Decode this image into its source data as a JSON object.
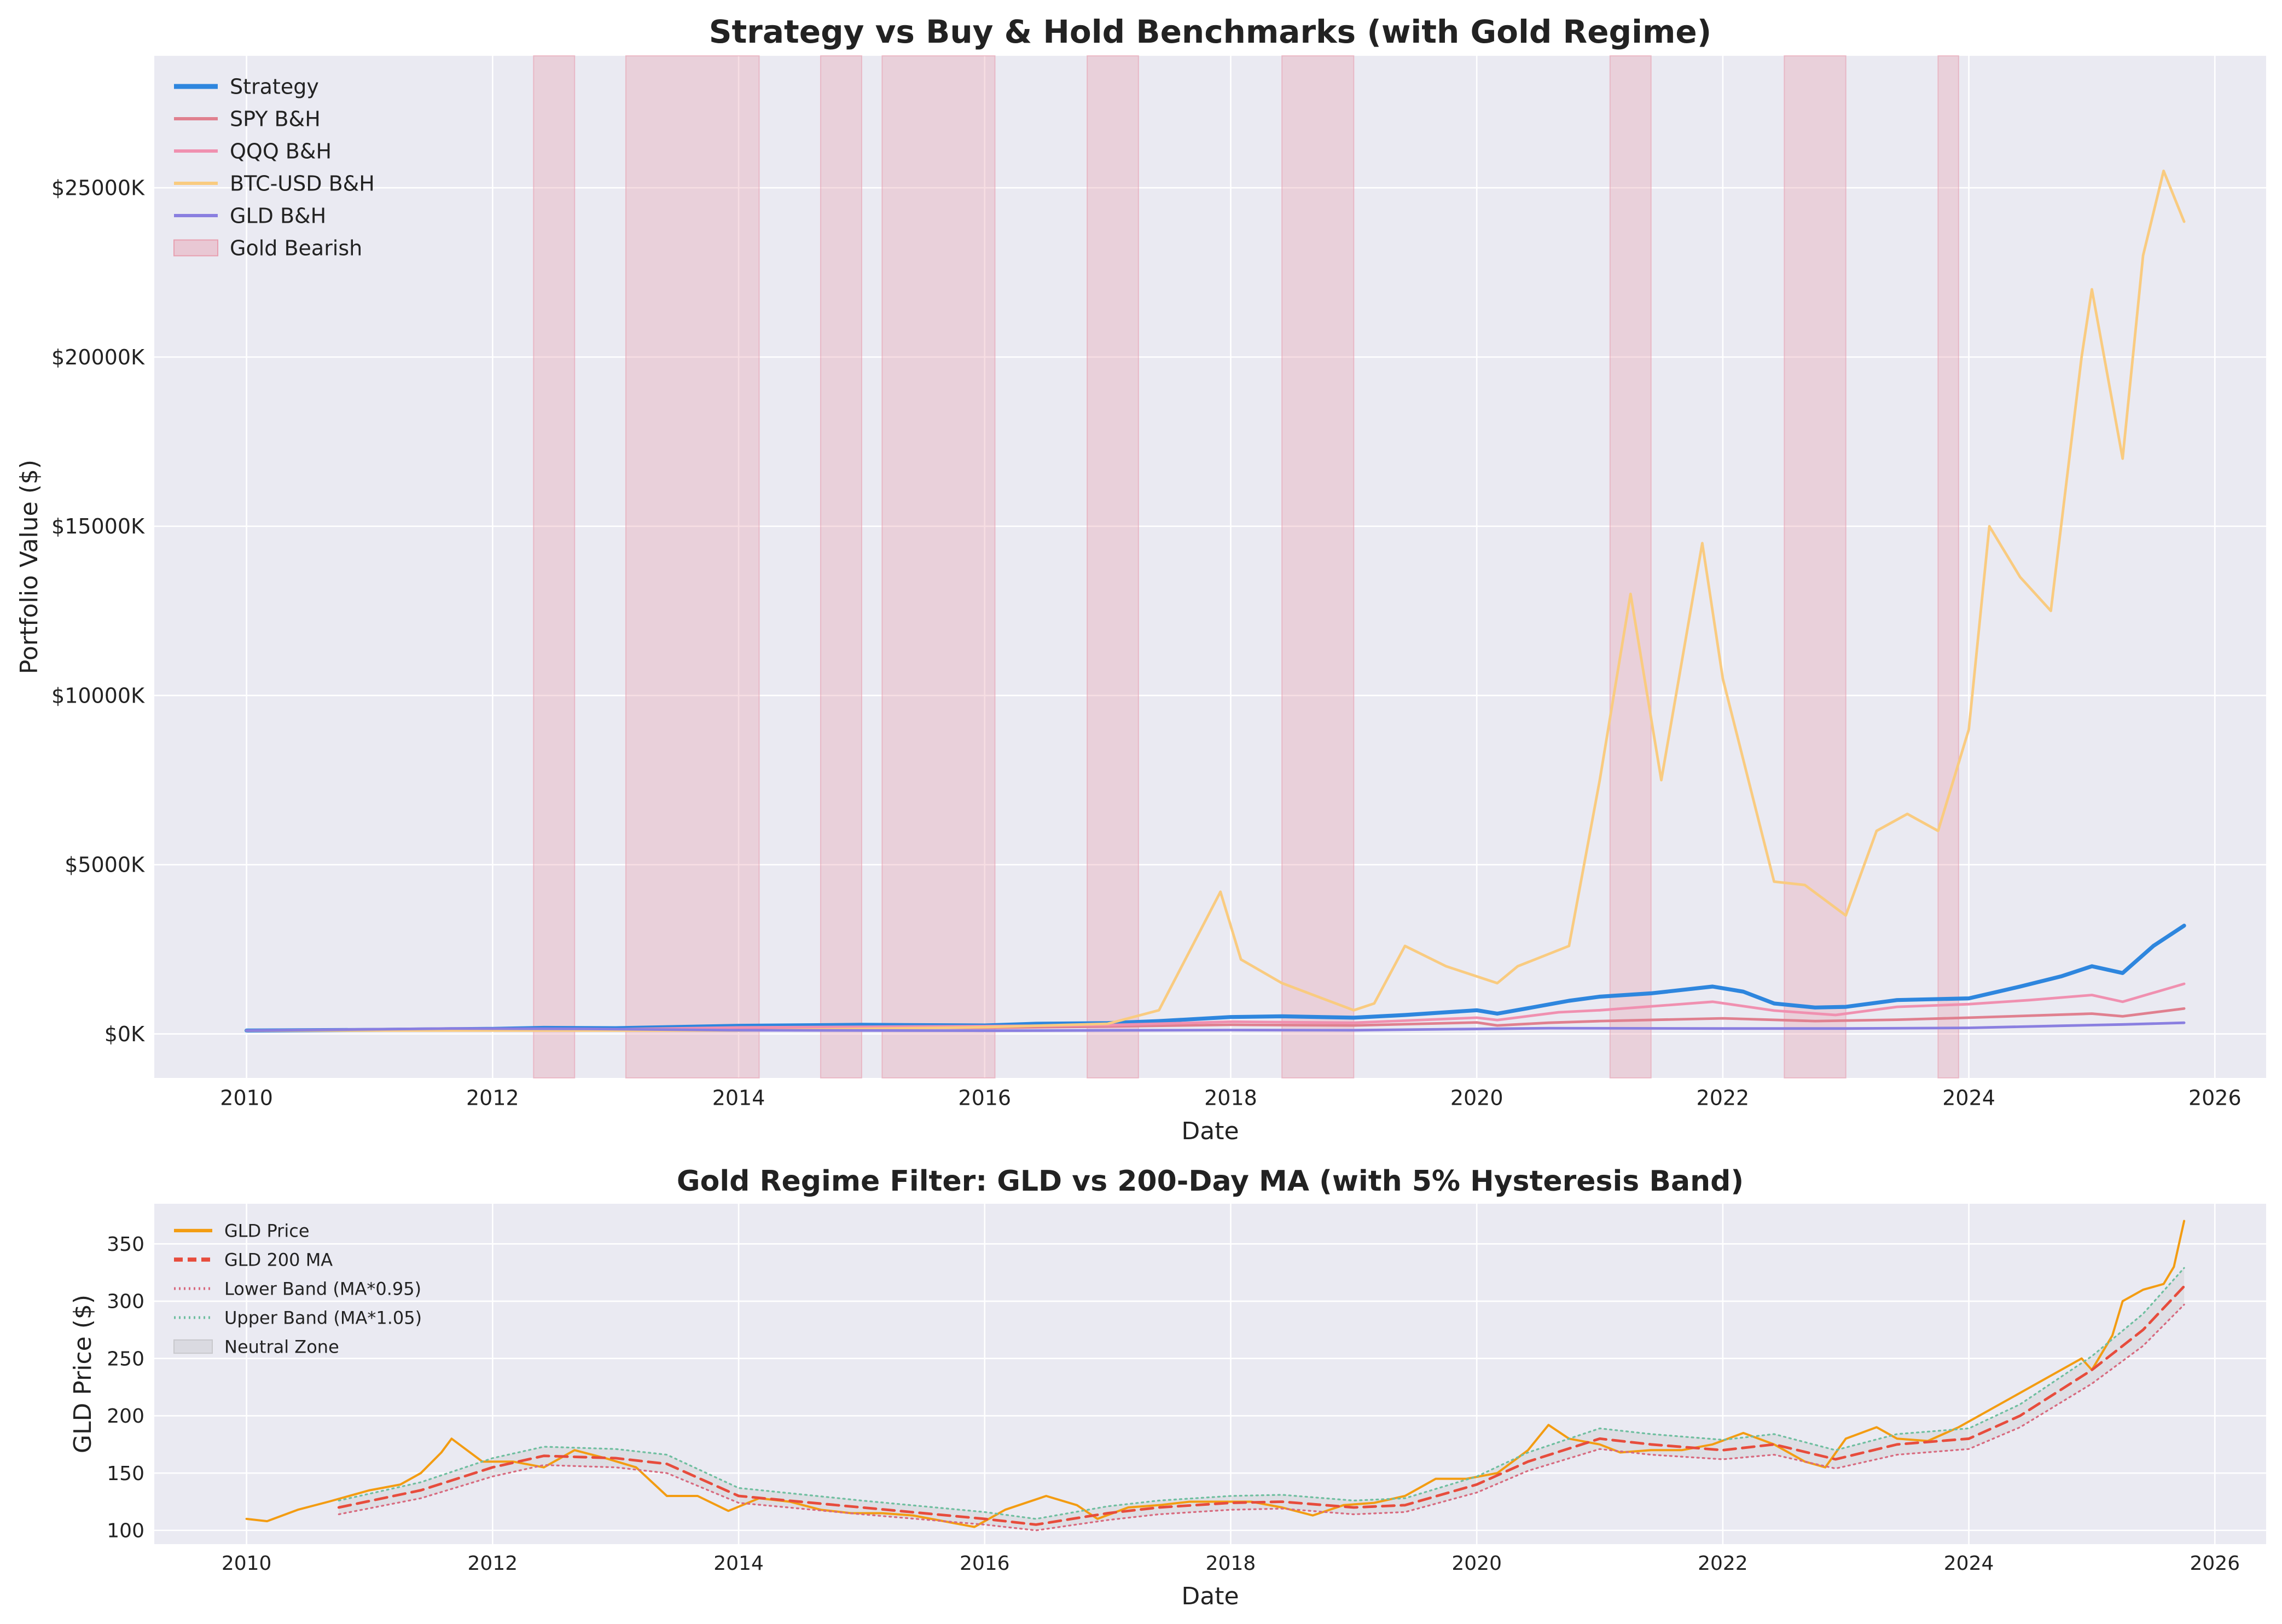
{
  "chart_data": [
    {
      "type": "line",
      "title": "Strategy vs Buy & Hold Benchmarks (with Gold Regime)",
      "xlabel": "Date",
      "ylabel": "Portfolio Value ($)",
      "xlim": [
        "2009-04-01",
        "2026-06-01"
      ],
      "ylim": [
        -1300,
        28900
      ],
      "x_ticks": [
        "2010",
        "2012",
        "2014",
        "2016",
        "2018",
        "2020",
        "2022",
        "2024",
        "2026"
      ],
      "y_ticks": [
        {
          "value": 0,
          "label": "$0K"
        },
        {
          "value": 5000,
          "label": "$5000K"
        },
        {
          "value": 10000,
          "label": "$10000K"
        },
        {
          "value": 15000,
          "label": "$15000K"
        },
        {
          "value": 20000,
          "label": "$20000K"
        },
        {
          "value": 25000,
          "label": "$25000K"
        }
      ],
      "y_unit": "thousands of dollars",
      "grid": true,
      "legend_position": "top-left",
      "shaded_regions": {
        "name": "Gold Bearish",
        "color": "#e8a0b0",
        "spans": [
          [
            "2012-05",
            "2012-09"
          ],
          [
            "2013-02",
            "2014-03"
          ],
          [
            "2014-09",
            "2015-01"
          ],
          [
            "2015-03",
            "2016-02"
          ],
          [
            "2016-11",
            "2017-04"
          ],
          [
            "2018-06",
            "2019-01"
          ],
          [
            "2021-02",
            "2021-06"
          ],
          [
            "2022-07",
            "2023-01"
          ],
          [
            "2023-10",
            "2023-12"
          ]
        ]
      },
      "series": [
        {
          "name": "Strategy",
          "color": "#2e86de",
          "width": 3,
          "x": [
            "2010-01",
            "2011-01",
            "2012-01",
            "2012-06",
            "2013-01",
            "2014-01",
            "2015-01",
            "2016-01",
            "2016-06",
            "2017-01",
            "2017-06",
            "2018-01",
            "2018-06",
            "2019-01",
            "2019-06",
            "2020-01",
            "2020-03",
            "2020-06",
            "2020-10",
            "2021-01",
            "2021-06",
            "2021-12",
            "2022-03",
            "2022-06",
            "2022-10",
            "2023-01",
            "2023-06",
            "2024-01",
            "2024-06",
            "2024-10",
            "2025-01",
            "2025-04",
            "2025-07",
            "2025-10"
          ],
          "values": [
            100,
            120,
            150,
            180,
            170,
            240,
            270,
            250,
            300,
            320,
            380,
            500,
            520,
            480,
            560,
            700,
            600,
            760,
            980,
            1100,
            1200,
            1400,
            1250,
            900,
            780,
            800,
            1000,
            1050,
            1400,
            1700,
            2000,
            1800,
            2600,
            3200
          ]
        },
        {
          "name": "SPY B&H",
          "color": "#e0808f",
          "width": 2,
          "x": [
            "2010-01",
            "2011-01",
            "2012-01",
            "2013-01",
            "2014-01",
            "2015-01",
            "2016-01",
            "2017-01",
            "2018-01",
            "2019-01",
            "2020-01",
            "2020-03",
            "2020-08",
            "2021-01",
            "2022-01",
            "2022-10",
            "2023-06",
            "2024-01",
            "2025-01",
            "2025-04",
            "2025-10"
          ],
          "values": [
            100,
            110,
            115,
            130,
            170,
            190,
            180,
            220,
            270,
            250,
            340,
            250,
            330,
            380,
            460,
            380,
            420,
            480,
            600,
            520,
            750
          ]
        },
        {
          "name": "QQQ B&H",
          "color": "#f090b0",
          "width": 2,
          "x": [
            "2010-01",
            "2011-01",
            "2012-01",
            "2013-01",
            "2014-01",
            "2015-01",
            "2016-01",
            "2017-01",
            "2018-01",
            "2019-01",
            "2020-01",
            "2020-03",
            "2020-09",
            "2021-01",
            "2021-12",
            "2022-06",
            "2022-12",
            "2023-06",
            "2024-01",
            "2024-07",
            "2025-01",
            "2025-04",
            "2025-10"
          ],
          "values": [
            100,
            115,
            120,
            135,
            190,
            210,
            230,
            260,
            360,
            330,
            480,
            410,
            640,
            700,
            950,
            690,
            560,
            800,
            880,
            1000,
            1150,
            950,
            1480
          ]
        },
        {
          "name": "BTC-USD B&H",
          "color": "#f9cb80",
          "width": 2,
          "x": [
            "2010-01",
            "2014-01",
            "2016-01",
            "2017-01",
            "2017-06",
            "2017-12",
            "2018-02",
            "2018-06",
            "2019-01",
            "2019-03",
            "2019-06",
            "2019-10",
            "2020-03",
            "2020-05",
            "2020-10",
            "2021-01",
            "2021-04",
            "2021-07",
            "2021-11",
            "2022-01",
            "2022-06",
            "2022-09",
            "2023-01",
            "2023-04",
            "2023-07",
            "2023-10",
            "2024-01",
            "2024-03",
            "2024-06",
            "2024-09",
            "2024-12",
            "2025-01",
            "2025-04",
            "2025-06",
            "2025-08",
            "2025-10"
          ],
          "values": [
            100,
            100,
            200,
            300,
            700,
            4200,
            2200,
            1500,
            700,
            900,
            2600,
            2000,
            1500,
            2000,
            2600,
            7500,
            13000,
            7500,
            14500,
            10500,
            4500,
            4400,
            3500,
            6000,
            6500,
            6000,
            9000,
            15000,
            13500,
            12500,
            20000,
            22000,
            17000,
            23000,
            25500,
            24000
          ]
        },
        {
          "name": "GLD B&H",
          "color": "#8a7fe0",
          "width": 2,
          "x": [
            "2010-01",
            "2011-09",
            "2012-10",
            "2013-12",
            "2016-01",
            "2018-01",
            "2019-01",
            "2020-08",
            "2022-01",
            "2023-01",
            "2024-01",
            "2024-10",
            "2025-04",
            "2025-10"
          ],
          "values": [
            100,
            160,
            150,
            110,
            95,
            115,
            110,
            170,
            160,
            160,
            180,
            240,
            280,
            330
          ]
        }
      ]
    },
    {
      "type": "line",
      "title": "Gold Regime Filter: GLD vs 200-Day MA (with 5% Hysteresis Band)",
      "xlabel": "Date",
      "ylabel": "GLD Price ($)",
      "xlim": [
        "2009-04-01",
        "2026-06-01"
      ],
      "ylim": [
        88,
        385
      ],
      "x_ticks": [
        "2010",
        "2012",
        "2014",
        "2016",
        "2018",
        "2020",
        "2022",
        "2024",
        "2026"
      ],
      "y_ticks": [
        100,
        150,
        200,
        250,
        300,
        350
      ],
      "grid": true,
      "legend_position": "top-left",
      "series": [
        {
          "name": "GLD Price",
          "color": "#f39c12",
          "width": 2.5,
          "style": "solid",
          "x": [
            "2010-01",
            "2010-03",
            "2010-06",
            "2010-09",
            "2011-01",
            "2011-04",
            "2011-06",
            "2011-08",
            "2011-09",
            "2011-12",
            "2012-03",
            "2012-06",
            "2012-09",
            "2012-12",
            "2013-03",
            "2013-06",
            "2013-09",
            "2013-12",
            "2014-03",
            "2014-06",
            "2014-09",
            "2014-12",
            "2015-03",
            "2015-06",
            "2015-09",
            "2015-12",
            "2016-03",
            "2016-07",
            "2016-10",
            "2016-12",
            "2017-03",
            "2017-06",
            "2017-09",
            "2017-12",
            "2018-03",
            "2018-06",
            "2018-09",
            "2018-12",
            "2019-03",
            "2019-06",
            "2019-09",
            "2019-12",
            "2020-03",
            "2020-06",
            "2020-08",
            "2020-10",
            "2021-01",
            "2021-03",
            "2021-06",
            "2021-09",
            "2021-12",
            "2022-03",
            "2022-06",
            "2022-09",
            "2022-11",
            "2023-01",
            "2023-04",
            "2023-06",
            "2023-09",
            "2023-12",
            "2024-03",
            "2024-06",
            "2024-09",
            "2024-12",
            "2025-01",
            "2025-03",
            "2025-04",
            "2025-06",
            "2025-08",
            "2025-09",
            "2025-10"
          ],
          "values": [
            110,
            108,
            118,
            125,
            135,
            140,
            150,
            168,
            180,
            160,
            160,
            155,
            170,
            163,
            155,
            130,
            130,
            117,
            128,
            125,
            118,
            115,
            115,
            113,
            108,
            103,
            118,
            130,
            122,
            110,
            120,
            122,
            125,
            125,
            125,
            120,
            113,
            122,
            124,
            130,
            145,
            145,
            150,
            170,
            192,
            180,
            175,
            168,
            170,
            170,
            175,
            185,
            175,
            160,
            155,
            180,
            190,
            180,
            178,
            190,
            205,
            220,
            235,
            250,
            240,
            270,
            300,
            310,
            315,
            330,
            370
          ]
        },
        {
          "name": "GLD 200 MA",
          "color": "#e74c3c",
          "width": 3,
          "style": "dashed",
          "x": [
            "2010-10",
            "2011-06",
            "2012-01",
            "2012-06",
            "2013-01",
            "2013-06",
            "2014-01",
            "2015-01",
            "2016-01",
            "2016-06",
            "2017-01",
            "2017-06",
            "2018-01",
            "2018-06",
            "2019-01",
            "2019-06",
            "2020-01",
            "2020-06",
            "2021-01",
            "2021-06",
            "2022-01",
            "2022-06",
            "2022-12",
            "2023-06",
            "2024-01",
            "2024-06",
            "2025-01",
            "2025-06",
            "2025-10"
          ],
          "values": [
            120,
            135,
            155,
            165,
            163,
            158,
            130,
            120,
            110,
            105,
            115,
            120,
            124,
            125,
            120,
            122,
            140,
            160,
            180,
            175,
            170,
            175,
            162,
            175,
            180,
            200,
            240,
            275,
            313
          ]
        },
        {
          "name": "Lower Band (MA*0.95)",
          "color": "#d86a7f",
          "width": 2,
          "style": "dotted",
          "x": [
            "2010-10",
            "2011-06",
            "2012-01",
            "2012-06",
            "2013-01",
            "2013-06",
            "2014-01",
            "2015-01",
            "2016-01",
            "2016-06",
            "2017-01",
            "2017-06",
            "2018-01",
            "2018-06",
            "2019-01",
            "2019-06",
            "2020-01",
            "2020-06",
            "2021-01",
            "2021-06",
            "2022-01",
            "2022-06",
            "2022-12",
            "2023-06",
            "2024-01",
            "2024-06",
            "2025-01",
            "2025-06",
            "2025-10"
          ],
          "values": [
            114,
            128,
            147,
            157,
            155,
            150,
            124,
            114,
            105,
            100,
            109,
            114,
            118,
            119,
            114,
            116,
            133,
            152,
            171,
            166,
            162,
            166,
            154,
            166,
            171,
            190,
            228,
            261,
            297
          ]
        },
        {
          "name": "Upper Band (MA*1.05)",
          "color": "#6fbfa0",
          "width": 2,
          "style": "dotted",
          "x": [
            "2010-10",
            "2011-06",
            "2012-01",
            "2012-06",
            "2013-01",
            "2013-06",
            "2014-01",
            "2015-01",
            "2016-01",
            "2016-06",
            "2017-01",
            "2017-06",
            "2018-01",
            "2018-06",
            "2019-01",
            "2019-06",
            "2020-01",
            "2020-06",
            "2021-01",
            "2021-06",
            "2022-01",
            "2022-06",
            "2022-12",
            "2023-06",
            "2024-01",
            "2024-06",
            "2025-01",
            "2025-06",
            "2025-10"
          ],
          "values": [
            126,
            142,
            163,
            173,
            171,
            166,
            137,
            126,
            116,
            110,
            121,
            126,
            130,
            131,
            126,
            128,
            147,
            168,
            189,
            184,
            179,
            184,
            170,
            184,
            189,
            210,
            252,
            289,
            329
          ]
        }
      ],
      "band": {
        "name": "Neutral Zone",
        "color": "#c8c8cc"
      }
    }
  ]
}
